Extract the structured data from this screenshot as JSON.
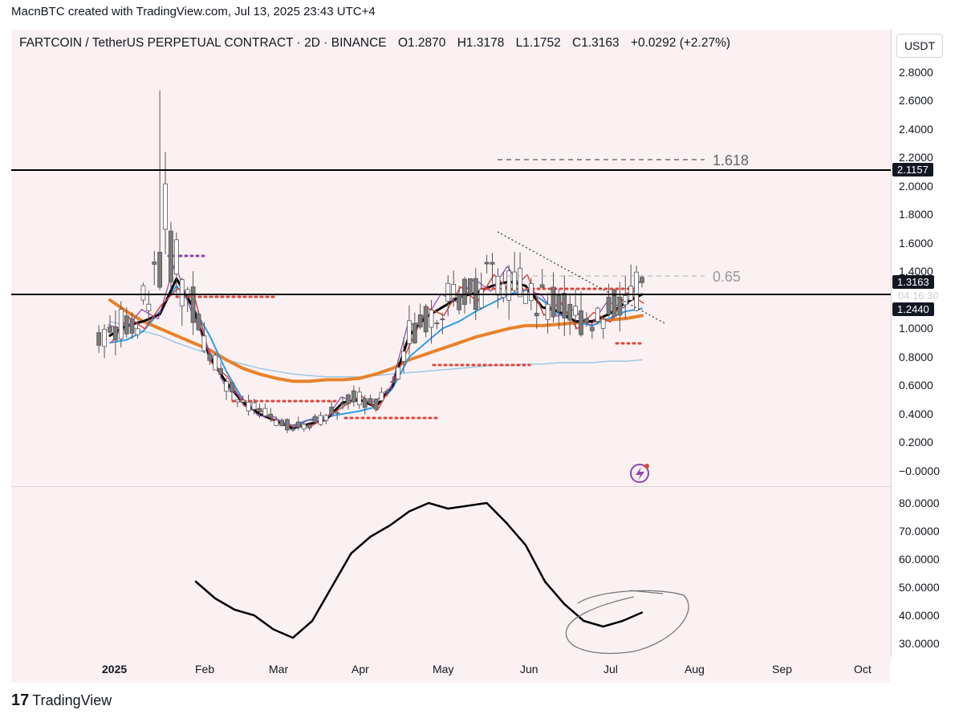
{
  "header": {
    "attribution": "MacnBTC created with TradingView.com, Jul 13, 2025 23:43 UTC+4"
  },
  "symbol": {
    "title": "FARTCOIN / TetherUS PERPETUAL CONTRACT · 2D · BINANCE",
    "open": "O1.2870",
    "high": "H1.3178",
    "low": "L1.1752",
    "close": "C1.3163",
    "change": "+0.0292 (+2.27%)"
  },
  "currency": "USDT",
  "price_axis": {
    "ticks": [
      "2.8000",
      "2.6000",
      "2.4000",
      "2.2000",
      "2.0000",
      "1.8000",
      "1.6000",
      "1.4000",
      "1.0000",
      "0.8000",
      "0.6000",
      "0.4000",
      "0.2000",
      "−0.0000"
    ],
    "tag_resistance": "2.1157",
    "tag_price": "1.3163",
    "timer": "04:16:30",
    "tag_support": "1.2440"
  },
  "osc_axis": {
    "ticks": [
      "80.0000",
      "70.0000",
      "60.0000",
      "50.0000",
      "40.0000",
      "30.0000"
    ]
  },
  "time_axis": {
    "labels": [
      "2025",
      "Feb",
      "Mar",
      "Apr",
      "May",
      "Jun",
      "Jul",
      "Aug",
      "Sep",
      "Oct"
    ]
  },
  "annotations": {
    "fib_1618": "1.618",
    "fib_065": "0.65"
  },
  "footer": {
    "brand": "TradingView"
  },
  "colors": {
    "background": "#fbf1f2",
    "candle": "#8a8a8a",
    "ema_black": "#000000",
    "ema_blue": "#2e9be8",
    "ema_orange": "#e8822a",
    "ema_light_blue": "#9cc8e6",
    "thin_red": "#e0433a",
    "thin_purple": "#8e44ad",
    "dots_red": "#e0433a",
    "dots_purple": "#8e44ad"
  },
  "chart_data": [
    {
      "type": "line",
      "title": "FARTCOIN / TetherUS PERPETUAL CONTRACT · 2D · BINANCE",
      "xlabel": "",
      "ylabel": "USDT",
      "ylim": [
        -0.1,
        3.0
      ],
      "x": [
        "2025-01-01",
        "2025-01-07",
        "2025-01-13",
        "2025-01-19",
        "2025-01-25",
        "2025-01-31",
        "2025-02-06",
        "2025-02-12",
        "2025-02-18",
        "2025-02-24",
        "2025-03-02",
        "2025-03-08",
        "2025-03-14",
        "2025-03-20",
        "2025-03-26",
        "2025-04-01",
        "2025-04-07",
        "2025-04-13",
        "2025-04-19",
        "2025-04-25",
        "2025-05-01",
        "2025-05-07",
        "2025-05-13",
        "2025-05-19",
        "2025-05-25",
        "2025-05-31",
        "2025-06-06",
        "2025-06-12",
        "2025-06-18",
        "2025-06-24",
        "2025-06-30",
        "2025-07-06",
        "2025-07-12"
      ],
      "series": [
        {
          "values": [
            0.95,
            1.02,
            1.05,
            1.1,
            1.35,
            1.15,
            0.8,
            0.62,
            0.48,
            0.4,
            0.35,
            0.3,
            0.33,
            0.36,
            0.48,
            0.5,
            0.45,
            0.6,
            0.95,
            1.08,
            1.15,
            1.22,
            1.25,
            1.3,
            1.33,
            1.3,
            1.15,
            1.12,
            1.05,
            1.05,
            1.1,
            1.18,
            1.24
          ]
        },
        {
          "values": [
            0.9,
            0.92,
            0.98,
            1.12,
            1.3,
            1.15,
            0.95,
            0.7,
            0.5,
            0.4,
            0.35,
            0.32,
            0.36,
            0.38,
            0.4,
            0.42,
            0.45,
            0.58,
            0.8,
            0.9,
            1.0,
            1.05,
            1.12,
            1.18,
            1.24,
            1.27,
            1.2,
            1.1,
            1.05,
            1.02,
            1.07,
            1.12,
            1.14
          ]
        },
        {
          "values": [
            1.2,
            1.12,
            1.05,
            1.0,
            0.95,
            0.9,
            0.85,
            0.78,
            0.72,
            0.68,
            0.65,
            0.63,
            0.63,
            0.64,
            0.64,
            0.65,
            0.68,
            0.72,
            0.78,
            0.82,
            0.86,
            0.9,
            0.94,
            0.97,
            1.0,
            1.02,
            1.02,
            1.03,
            1.04,
            1.05,
            1.06,
            1.07,
            1.09
          ]
        },
        {
          "values": [
            1.05,
            1.02,
            0.98,
            0.95,
            0.9,
            0.86,
            0.82,
            0.78,
            0.75,
            0.72,
            0.7,
            0.68,
            0.67,
            0.66,
            0.66,
            0.66,
            0.67,
            0.68,
            0.69,
            0.7,
            0.71,
            0.72,
            0.73,
            0.74,
            0.74,
            0.75,
            0.75,
            0.76,
            0.76,
            0.76,
            0.77,
            0.77,
            0.78
          ]
        }
      ]
    },
    {
      "type": "line",
      "title": "",
      "ylim": [
        25,
        85
      ],
      "x": [
        "2025-02-01",
        "2025-02-08",
        "2025-02-15",
        "2025-02-22",
        "2025-03-01",
        "2025-03-08",
        "2025-03-15",
        "2025-03-22",
        "2025-03-29",
        "2025-04-05",
        "2025-04-12",
        "2025-04-19",
        "2025-04-26",
        "2025-05-03",
        "2025-05-10",
        "2025-05-17",
        "2025-05-24",
        "2025-05-31",
        "2025-06-07",
        "2025-06-14",
        "2025-06-21",
        "2025-06-28",
        "2025-07-05",
        "2025-07-12"
      ],
      "series": [
        {
          "values": [
            52,
            46,
            42,
            40,
            35,
            32,
            38,
            50,
            62,
            68,
            72,
            77,
            80,
            78,
            79,
            80,
            73,
            65,
            52,
            44,
            38,
            36,
            38,
            41
          ]
        }
      ]
    }
  ]
}
